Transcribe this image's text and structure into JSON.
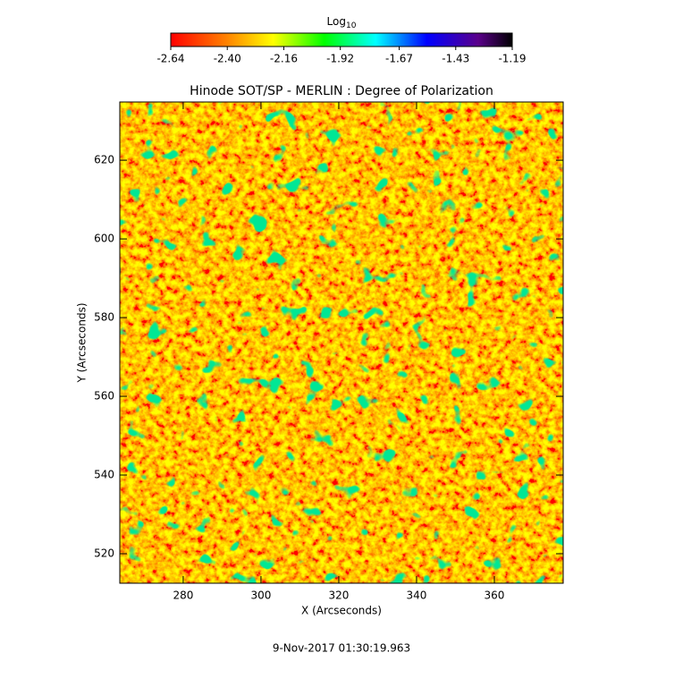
{
  "chart_data": {
    "type": "heatmap",
    "title": "Hinode SOT/SP - MERLIN : Degree of Polarization",
    "colorbar": {
      "title": "Log",
      "title_subscript": "10",
      "lim": [
        -2.64,
        -1.19
      ],
      "ticks": [
        -2.64,
        {
          "value": -2.4,
          "label": "-2.40"
        },
        -2.16,
        -1.92,
        -1.67,
        -1.43,
        -1.19
      ]
    },
    "xlabel": "X (Arcseconds)",
    "ylabel": "Y (Arcseconds)",
    "xlim": [
      263.7,
      377.7
    ],
    "xticks": [
      280,
      300,
      320,
      340,
      360
    ],
    "ylim": [
      512.5,
      634.8
    ],
    "yticks": [
      520,
      540,
      560,
      580,
      600,
      620
    ],
    "annotation": "9-Nov-2017 01:30:19.963"
  }
}
